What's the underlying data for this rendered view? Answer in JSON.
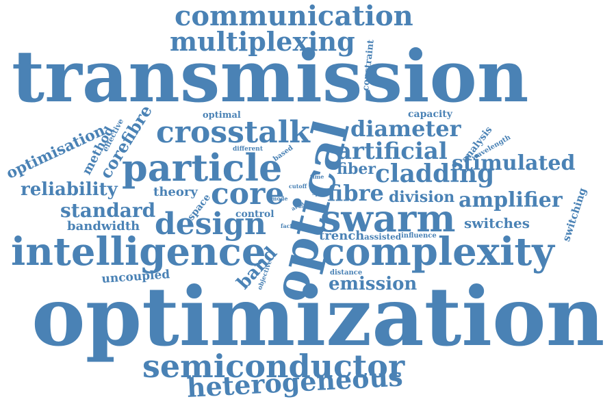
{
  "colors": {
    "word": "#4a82b5",
    "background": "#ffffff"
  },
  "words": [
    "communication",
    "multiplexing",
    "constraint",
    "transmission",
    "optical",
    "optimal",
    "capacity",
    "optimisation",
    "effective",
    "method",
    "corefibre",
    "crosstalk",
    "diameter",
    "analysis",
    "wavelength",
    "different",
    "based",
    "artificial",
    "particle",
    "stimulated",
    "fiber",
    "cladding",
    "time",
    "reliability",
    "theory",
    "cutoff",
    "speed",
    "core",
    "fibre",
    "division",
    "amplifier",
    "standard",
    "space",
    "mode",
    "area",
    "fluid",
    "low",
    "switching",
    "bandwidth",
    "design",
    "control",
    "swarm",
    "switches",
    "factor",
    "report",
    "trench",
    "assisted",
    "influence",
    "intelligence",
    "complexity",
    "band",
    "objective",
    "distance",
    "uncoupled",
    "emission",
    "optimization",
    "semiconductor",
    "heterogeneous"
  ]
}
